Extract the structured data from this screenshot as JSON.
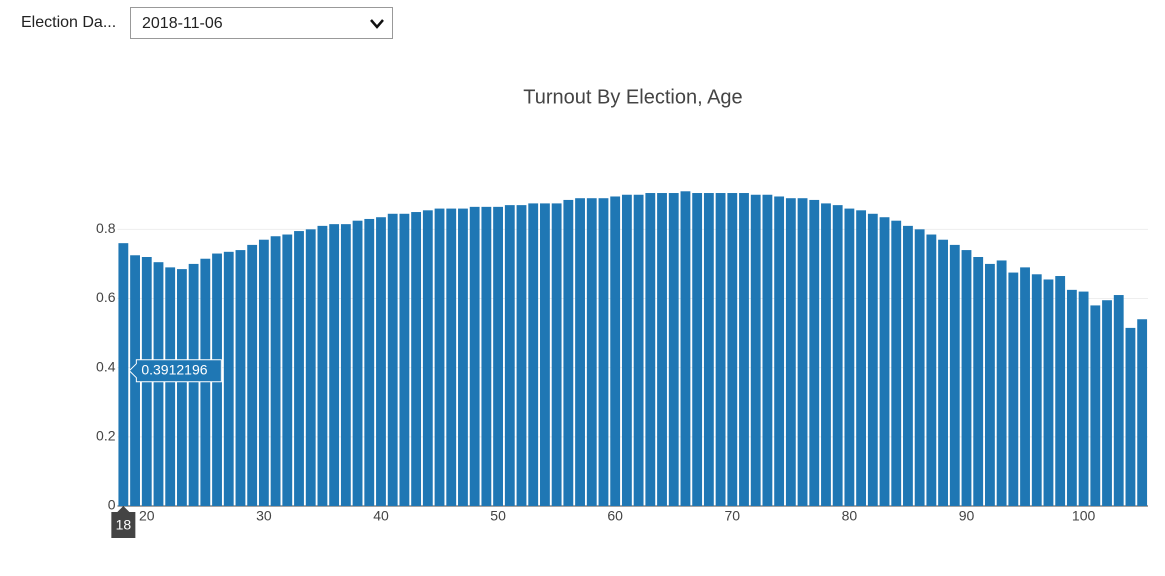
{
  "controls": {
    "label": "Election Da...",
    "value": "2018-11-06"
  },
  "chart_data": {
    "type": "bar",
    "title": "Turnout By Election, Age",
    "color": "#1f77b4",
    "grid": true,
    "x": [
      18,
      19,
      20,
      21,
      22,
      23,
      24,
      25,
      26,
      27,
      28,
      29,
      30,
      31,
      32,
      33,
      34,
      35,
      36,
      37,
      38,
      39,
      40,
      41,
      42,
      43,
      44,
      45,
      46,
      47,
      48,
      49,
      50,
      51,
      52,
      53,
      54,
      55,
      56,
      57,
      58,
      59,
      60,
      61,
      62,
      63,
      64,
      65,
      66,
      67,
      68,
      69,
      70,
      71,
      72,
      73,
      74,
      75,
      76,
      77,
      78,
      79,
      80,
      81,
      82,
      83,
      84,
      85,
      86,
      87,
      88,
      89,
      90,
      91,
      92,
      93,
      94,
      95,
      96,
      97,
      98,
      99,
      100,
      101,
      102,
      103,
      104,
      105
    ],
    "values": [
      0.76,
      0.725,
      0.72,
      0.705,
      0.69,
      0.685,
      0.7,
      0.715,
      0.73,
      0.735,
      0.74,
      0.755,
      0.77,
      0.78,
      0.785,
      0.795,
      0.8,
      0.81,
      0.815,
      0.815,
      0.825,
      0.83,
      0.835,
      0.845,
      0.845,
      0.85,
      0.855,
      0.86,
      0.86,
      0.86,
      0.865,
      0.865,
      0.865,
      0.87,
      0.87,
      0.875,
      0.875,
      0.875,
      0.885,
      0.89,
      0.89,
      0.89,
      0.895,
      0.9,
      0.9,
      0.905,
      0.905,
      0.905,
      0.91,
      0.905,
      0.905,
      0.905,
      0.905,
      0.905,
      0.9,
      0.9,
      0.895,
      0.89,
      0.89,
      0.885,
      0.875,
      0.87,
      0.86,
      0.855,
      0.845,
      0.835,
      0.825,
      0.81,
      0.8,
      0.785,
      0.77,
      0.755,
      0.74,
      0.72,
      0.7,
      0.71,
      0.675,
      0.69,
      0.67,
      0.655,
      0.665,
      0.625,
      0.62,
      0.58,
      0.595,
      0.61,
      0.515,
      0.54
    ],
    "xlim": [
      17.5,
      105.5
    ],
    "xticks": [
      20,
      30,
      40,
      50,
      60,
      70,
      80,
      90,
      100
    ],
    "ylim": [
      0,
      0.96
    ],
    "yticks": [
      0,
      0.2,
      0.4,
      0.6,
      0.8
    ],
    "hover": {
      "x": 18,
      "y": 0.3912196
    }
  }
}
